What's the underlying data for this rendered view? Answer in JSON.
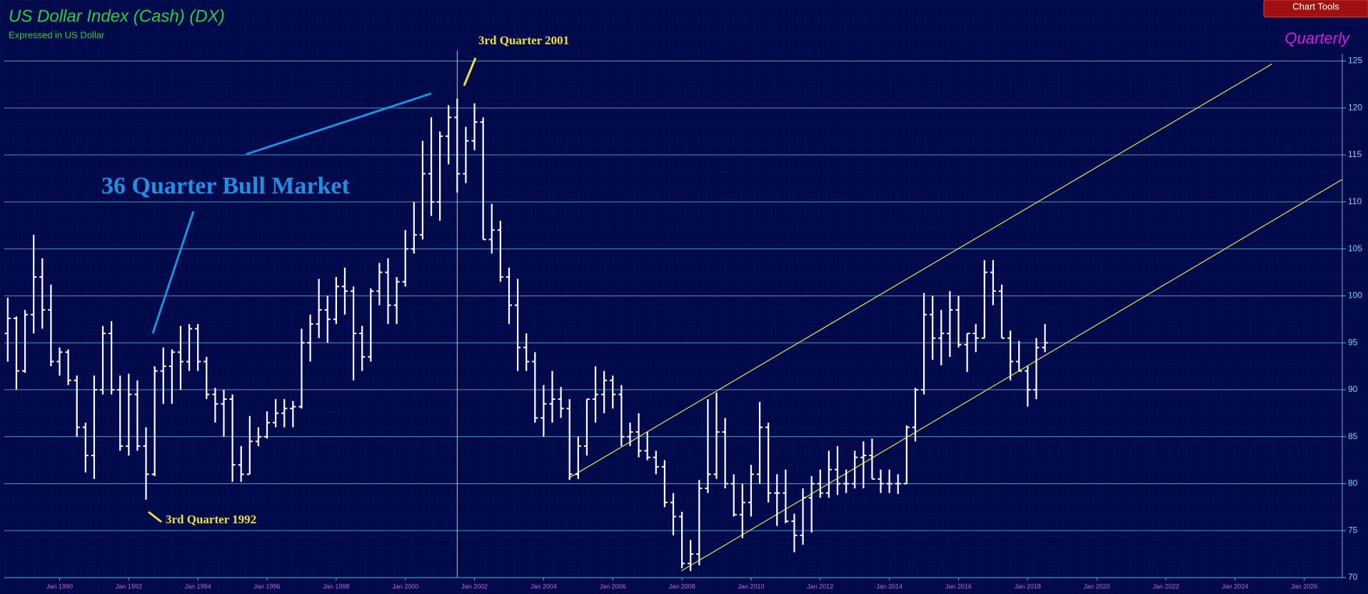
{
  "chart_data": {
    "type": "ohlc",
    "title": "US Dollar Index (Cash) (DX)",
    "subtitle": "Expressed in US Dollar",
    "period": "Quarterly",
    "button": "Chart Tools",
    "color": "#ffffff",
    "grid": true,
    "xlim": [
      1988.4,
      2027.1
    ],
    "ylim": [
      70,
      125
    ],
    "yticks": [
      70,
      75,
      80,
      85,
      90,
      95,
      100,
      105,
      110,
      115,
      120,
      125
    ],
    "xticks": [
      {
        "value": 1990,
        "label": "Jan 1990"
      },
      {
        "value": 1992,
        "label": "Jan 1992"
      },
      {
        "value": 1994,
        "label": "Jan 1994"
      },
      {
        "value": 1996,
        "label": "Jan 1996"
      },
      {
        "value": 1998,
        "label": "Jan 1998"
      },
      {
        "value": 2000,
        "label": "Jan 2000"
      },
      {
        "value": 2002,
        "label": "Jan 2002"
      },
      {
        "value": 2004,
        "label": "Jan 2004"
      },
      {
        "value": 2006,
        "label": "Jan 2006"
      },
      {
        "value": 2008,
        "label": "Jan 2008"
      },
      {
        "value": 2010,
        "label": "Jan 2010"
      },
      {
        "value": 2012,
        "label": "Jan 2012"
      },
      {
        "value": 2014,
        "label": "Jan 2014"
      },
      {
        "value": 2016,
        "label": "Jan 2016"
      },
      {
        "value": 2018,
        "label": "Jan 2018"
      },
      {
        "value": 2020,
        "label": "Jan 2020"
      },
      {
        "value": 2022,
        "label": "Jan 2022"
      },
      {
        "value": 2024,
        "label": "Jan 2024"
      },
      {
        "value": 2026,
        "label": "Jan 2026"
      }
    ],
    "x": [
      1988.5,
      1988.75,
      1989,
      1989.25,
      1989.5,
      1989.75,
      1990,
      1990.25,
      1990.5,
      1990.75,
      1991,
      1991.25,
      1991.5,
      1991.75,
      1992,
      1992.25,
      1992.5,
      1992.75,
      1993,
      1993.25,
      1993.5,
      1993.75,
      1994,
      1994.25,
      1994.5,
      1994.75,
      1995,
      1995.25,
      1995.5,
      1995.75,
      1996,
      1996.25,
      1996.5,
      1996.75,
      1997,
      1997.25,
      1997.5,
      1997.75,
      1998,
      1998.25,
      1998.5,
      1998.75,
      1999,
      1999.25,
      1999.5,
      1999.75,
      2000,
      2000.25,
      2000.5,
      2000.75,
      2001,
      2001.25,
      2001.5,
      2001.75,
      2002,
      2002.25,
      2002.5,
      2002.75,
      2003,
      2003.25,
      2003.5,
      2003.75,
      2004,
      2004.25,
      2004.5,
      2004.75,
      2005,
      2005.25,
      2005.5,
      2005.75,
      2006,
      2006.25,
      2006.5,
      2006.75,
      2007,
      2007.25,
      2007.5,
      2007.75,
      2008,
      2008.25,
      2008.5,
      2008.75,
      2009,
      2009.25,
      2009.5,
      2009.75,
      2010,
      2010.25,
      2010.5,
      2010.75,
      2011,
      2011.25,
      2011.5,
      2011.75,
      2012,
      2012.25,
      2012.5,
      2012.75,
      2013,
      2013.25,
      2013.5,
      2013.75,
      2014,
      2014.25,
      2014.5,
      2014.75,
      2015,
      2015.25,
      2015.5,
      2015.75,
      2016,
      2016.25,
      2016.5,
      2016.75,
      2017,
      2017.25,
      2017.5,
      2017.75,
      2018,
      2018.25,
      2018.5
    ],
    "open": [
      96,
      97.6,
      92,
      98,
      102,
      98.5,
      93,
      94,
      91,
      86,
      83,
      90,
      96,
      90,
      84,
      89.5,
      84,
      81,
      92,
      92.5,
      94,
      93,
      96.5,
      93,
      89.5,
      88.5,
      89,
      82,
      81,
      84.5,
      85,
      86.5,
      87.5,
      88,
      88.2,
      95,
      97,
      98.5,
      97.5,
      101,
      100.5,
      96,
      93.5,
      100.5,
      102.5,
      99,
      101.5,
      105,
      106.5,
      113,
      110,
      117,
      119,
      113,
      116.5,
      118.5,
      106,
      107,
      102,
      99,
      94.5,
      93,
      87,
      88.5,
      89,
      88,
      81,
      84,
      89,
      89.5,
      91,
      89.5,
      85,
      85.5,
      83.5,
      82.8,
      81.8,
      78,
      76.5,
      71.5,
      72.5,
      79.5,
      81,
      85.5,
      80,
      76.7,
      78,
      81,
      86,
      79,
      79,
      76,
      74.5,
      78.5,
      80,
      79,
      81.5,
      80,
      80,
      82.8,
      83,
      80.5,
      80,
      80,
      80,
      86,
      90,
      98,
      95.5,
      96,
      98.5,
      94.8,
      96,
      95.5,
      102.5,
      100.5,
      95.5,
      93,
      92,
      90,
      94.5
    ],
    "high": [
      99.8,
      97.8,
      98.5,
      106.5,
      104,
      101.2,
      94.5,
      94.3,
      91.5,
      86.5,
      91.5,
      96.8,
      97.3,
      91.5,
      91.7,
      91,
      86,
      92.5,
      94.5,
      94.3,
      96.8,
      97,
      97,
      93.5,
      90.2,
      90,
      89.5,
      84,
      87.2,
      86,
      87.7,
      89,
      89,
      88.8,
      96.5,
      98,
      101.8,
      100,
      102,
      103,
      101,
      96.8,
      100.8,
      103.5,
      104,
      102,
      107,
      110,
      116.5,
      119,
      117.5,
      120.3,
      121,
      118,
      120.5,
      119,
      109.8,
      108,
      103,
      101.8,
      96,
      94,
      90.5,
      92,
      90.3,
      89,
      85,
      89,
      92.5,
      92,
      91.5,
      90.5,
      86.5,
      87.5,
      85.5,
      83.5,
      82.5,
      79,
      77,
      74,
      80.4,
      89,
      89.7,
      87,
      81,
      80,
      82,
      88.7,
      86.5,
      81,
      81.5,
      76.8,
      79.5,
      80.8,
      81.5,
      83.5,
      84,
      81.5,
      83.5,
      84.5,
      84.8,
      81.5,
      81.5,
      81,
      86.2,
      90.2,
      100.3,
      100,
      98.5,
      100.5,
      100,
      96,
      97,
      103.8,
      103.8,
      101.2,
      96.3,
      95.2,
      92.5,
      95.5,
      97
    ],
    "low": [
      93,
      90,
      91.8,
      96,
      96.5,
      92.5,
      91.5,
      90.5,
      85,
      81.2,
      80.5,
      89.5,
      89.5,
      83.5,
      83,
      83.5,
      78.3,
      80.8,
      88.5,
      88.5,
      90,
      92,
      92,
      89,
      86.5,
      85,
      80.2,
      80.2,
      81,
      84,
      84.8,
      86,
      86,
      86,
      88,
      93,
      95.5,
      95,
      97,
      98,
      91,
      92,
      93,
      99,
      97,
      97,
      101,
      104.5,
      106,
      108.5,
      108,
      114,
      111,
      112,
      115.5,
      106,
      104.5,
      101.5,
      97,
      92,
      92,
      86.5,
      85,
      86.5,
      87,
      80.4,
      80.5,
      83,
      86.5,
      87.5,
      88,
      84,
      84,
      82.8,
      82.5,
      81,
      77.5,
      74.5,
      71,
      70.7,
      71.3,
      79,
      80.5,
      79.5,
      76.5,
      74.2,
      76.5,
      80,
      78,
      75.5,
      75.8,
      72.7,
      73.5,
      74.8,
      78.5,
      78.5,
      78.8,
      79,
      79.5,
      79.5,
      80.5,
      79,
      79,
      78.9,
      80,
      84.5,
      89.5,
      93.2,
      92.6,
      93.5,
      94.5,
      91.9,
      94,
      95.5,
      99,
      95.5,
      91,
      92,
      88.2,
      89,
      94
    ],
    "close": [
      97.6,
      92,
      98,
      102,
      98.5,
      93,
      94,
      91,
      86,
      83,
      90,
      96,
      90,
      84,
      89.5,
      84,
      81,
      92,
      92.5,
      94,
      93,
      96.5,
      93,
      89.5,
      88.5,
      89,
      82,
      81,
      84.5,
      85,
      86.5,
      87.5,
      88,
      88.2,
      95,
      97,
      98.5,
      97.5,
      101,
      100.5,
      96,
      93.5,
      100.5,
      102.5,
      99,
      101.5,
      105,
      106.5,
      113,
      110,
      117,
      119,
      113,
      116.5,
      118.5,
      106,
      107,
      102,
      99,
      94.5,
      93,
      87,
      88.5,
      89,
      88,
      81,
      84,
      89,
      89.5,
      91,
      89.5,
      85,
      85.5,
      83.5,
      82.8,
      81.8,
      78,
      76.5,
      71.5,
      72.5,
      79.5,
      81,
      85.5,
      80,
      76.7,
      78,
      81,
      86,
      79,
      79,
      76,
      74.5,
      78.5,
      80,
      79,
      81.5,
      80,
      80,
      82.8,
      83,
      80.5,
      80,
      80,
      80,
      86,
      90,
      98,
      95.5,
      96,
      98.5,
      94.8,
      96,
      95.5,
      102.5,
      100.5,
      95.5,
      93,
      92,
      90,
      94.5,
      95
    ],
    "trendlines": [
      {
        "color": "#e8e84a",
        "x": [
          2004.72,
          2025.07
        ],
        "y": [
          80.58,
          124.7
        ]
      },
      {
        "color": "#e8e84a",
        "x": [
          2007.98,
          2027.1
        ],
        "y": [
          70.7,
          112.4
        ]
      }
    ],
    "vline": {
      "color": "#9fd0c8",
      "x": 2001.5
    },
    "annotations": [
      "36 Quarter Bull Market",
      "3rd Quarter 2001",
      "3rd Quarter 1992"
    ]
  }
}
